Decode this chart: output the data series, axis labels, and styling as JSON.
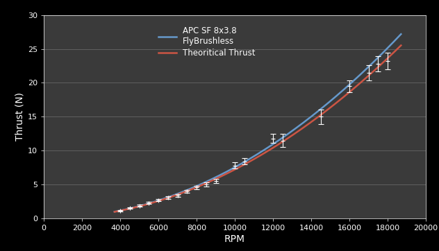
{
  "background_color": "#000000",
  "plot_bg_color": "#3a3a3a",
  "grid_color": "#666666",
  "text_color": "#ffffff",
  "xlabel": "RPM",
  "ylabel": "Thrust (N)",
  "xlim": [
    0,
    20000
  ],
  "ylim": [
    0,
    30
  ],
  "xticks": [
    0,
    2000,
    4000,
    6000,
    8000,
    10000,
    12000,
    14000,
    16000,
    18000,
    20000
  ],
  "yticks": [
    0,
    5,
    10,
    15,
    20,
    25,
    30
  ],
  "apc_color": "#6699cc",
  "theoretical_color": "#cc5544",
  "errorbar_color": "#ffffff",
  "legend_label_apc": "APC SF 8x3.8\nFlyBrushless",
  "legend_label_theoretical": "Theoritical Thrust",
  "apc_rpm": [
    3800,
    4000,
    4200,
    4500,
    4800,
    5000,
    5200,
    5500,
    5800,
    6000,
    6300,
    6600,
    6900,
    7200,
    7500,
    7800,
    8000,
    8500,
    9000,
    9500,
    10000,
    10500,
    12000,
    12500,
    14000,
    14500,
    16000,
    16500,
    17000,
    17500,
    18000,
    18500
  ],
  "apc_thrust": [
    1.05,
    1.15,
    1.28,
    1.5,
    1.72,
    1.88,
    2.05,
    2.28,
    2.55,
    2.7,
    2.95,
    3.2,
    3.45,
    3.72,
    4.0,
    4.3,
    4.55,
    5.0,
    5.55,
    6.2,
    7.8,
    8.4,
    12.0,
    12.8,
    15.2,
    16.0,
    19.5,
    21.0,
    22.5,
    24.0,
    25.5,
    27.2
  ],
  "theoretical_rpm": [
    3800,
    4000,
    4200,
    4500,
    4800,
    5000,
    5200,
    5500,
    5800,
    6000,
    6300,
    6600,
    6900,
    7200,
    7500,
    7800,
    8000,
    8500,
    9000,
    9500,
    10000,
    10500,
    12000,
    12500,
    14000,
    14500,
    16000,
    16500,
    17000,
    17500,
    18000,
    18500
  ],
  "theoretical_thrust": [
    1.0,
    1.12,
    1.25,
    1.45,
    1.65,
    1.82,
    1.98,
    2.22,
    2.48,
    2.62,
    2.87,
    3.12,
    3.38,
    3.65,
    3.92,
    4.2,
    4.45,
    4.9,
    5.4,
    6.05,
    7.55,
    8.1,
    11.5,
    12.2,
    14.5,
    15.2,
    18.5,
    19.8,
    21.0,
    22.2,
    23.3,
    24.5
  ],
  "errorbar_rpm": [
    4000,
    4500,
    5000,
    5500,
    6000,
    6500,
    7000,
    7500,
    8000,
    8500,
    9000,
    10000,
    10500,
    12000,
    12500,
    14500,
    16000,
    17000,
    17500,
    18000
  ],
  "errorbar_thrust": [
    1.15,
    1.5,
    1.88,
    2.28,
    2.7,
    3.05,
    3.38,
    4.0,
    4.55,
    5.0,
    5.55,
    7.8,
    8.4,
    11.8,
    11.5,
    15.0,
    19.5,
    21.5,
    22.8,
    23.2
  ],
  "errorbar_yerr": [
    0.12,
    0.12,
    0.12,
    0.15,
    0.15,
    0.18,
    0.2,
    0.22,
    0.25,
    0.28,
    0.3,
    0.45,
    0.45,
    0.65,
    1.0,
    1.1,
    0.85,
    1.1,
    1.1,
    1.2
  ]
}
